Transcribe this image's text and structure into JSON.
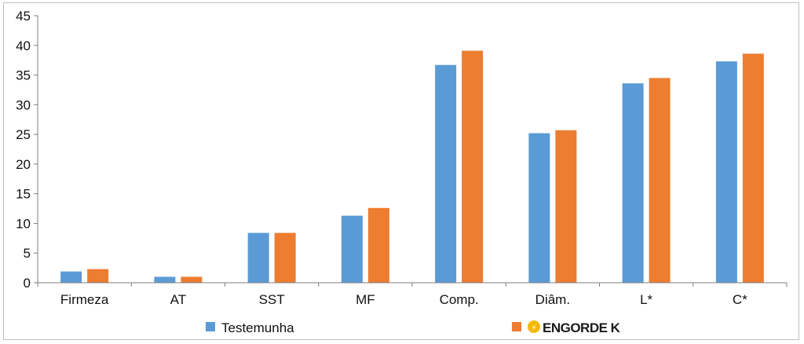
{
  "chart_data": {
    "type": "bar",
    "categories": [
      "Firmeza",
      "AT",
      "SST",
      "MF",
      "Comp.",
      "Diâm.",
      "L*",
      "C*"
    ],
    "series": [
      {
        "name": "Testemunha",
        "color": "#5b9bd5",
        "values": [
          1.9,
          1.0,
          8.4,
          11.3,
          36.7,
          25.2,
          33.6,
          37.3
        ]
      },
      {
        "name": "ENGORDE K",
        "color": "#ed7d31",
        "values": [
          2.3,
          1.0,
          8.4,
          12.6,
          39.1,
          25.7,
          34.5,
          38.6
        ]
      }
    ],
    "title": "",
    "xlabel": "",
    "ylabel": "",
    "ylim": [
      0,
      45
    ],
    "yticks": [
      0,
      5,
      10,
      15,
      20,
      25,
      30,
      35,
      40,
      45
    ],
    "grid": false,
    "legend_position": "bottom",
    "legend_logo_icon": "engorde-k-logo-icon",
    "logo_color": "#f5b800"
  }
}
